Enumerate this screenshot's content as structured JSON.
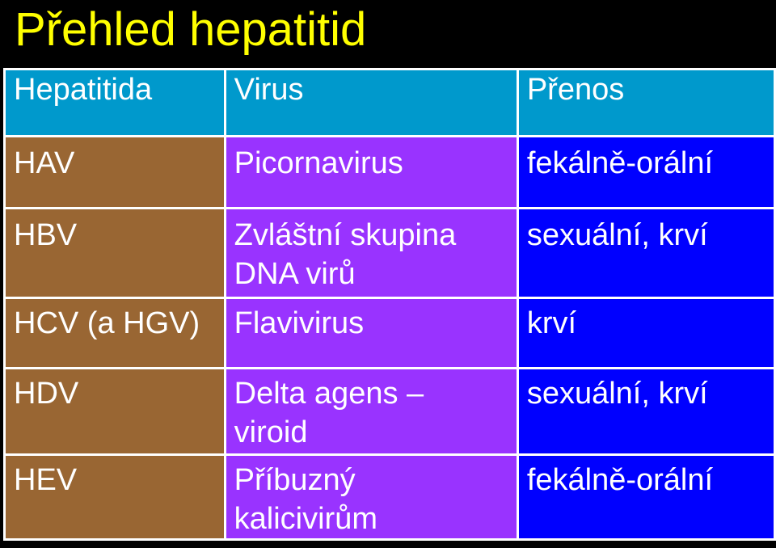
{
  "title": "Přehled hepatitid",
  "colors": {
    "background": "#000000",
    "title": "#FFFF00",
    "header_row": "#0099CC",
    "column_hepatitida": "#996633",
    "column_virus": "#9933FF",
    "column_prenos": "#0000FF",
    "text": "#FFFFFF"
  },
  "table": {
    "headers": [
      "Hepatitida",
      "Virus",
      "Přenos"
    ],
    "rows": [
      {
        "hepatitida": "HAV",
        "virus": [
          "Picornavirus"
        ],
        "prenos": "fekálně-orální"
      },
      {
        "hepatitida": "HBV",
        "virus": [
          "Zvláštní skupina",
          "DNA virů"
        ],
        "prenos": "sexuální, krví"
      },
      {
        "hepatitida": "HCV (a HGV)",
        "virus": [
          "Flavivirus"
        ],
        "prenos": "krví"
      },
      {
        "hepatitida": "HDV",
        "virus": [
          "Delta agens –",
          "viroid"
        ],
        "prenos": "sexuální, krví"
      },
      {
        "hepatitida": "HEV",
        "virus": [
          "Příbuzný",
          "kalicivirům"
        ],
        "prenos": "fekálně-orální"
      }
    ]
  }
}
